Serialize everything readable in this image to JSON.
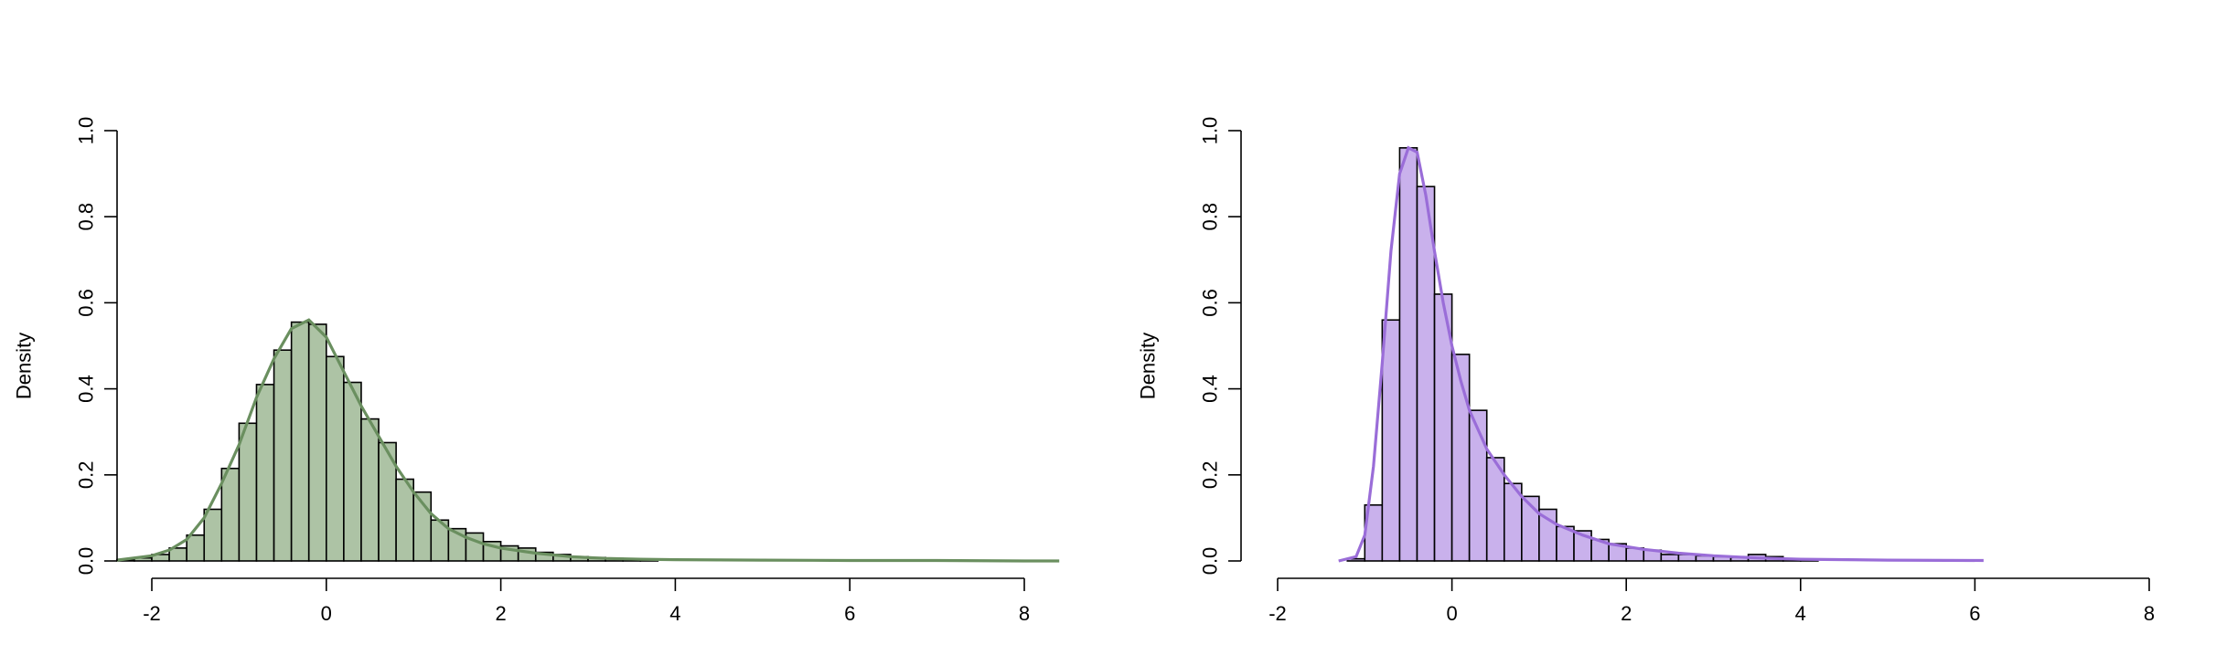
{
  "chart_data": [
    {
      "type": "histogram",
      "xlabel": "",
      "ylabel": "Density",
      "xlim": [
        -2.4,
        8.4
      ],
      "ylim": [
        0,
        1.0
      ],
      "x_ticks": [
        -2,
        0,
        2,
        4,
        6,
        8
      ],
      "y_ticks": [
        0.0,
        0.2,
        0.4,
        0.6,
        0.8,
        1.0
      ],
      "bin_width": 0.2,
      "bin_start": -2.4,
      "bars": [
        0.003,
        0.007,
        0.015,
        0.03,
        0.06,
        0.12,
        0.215,
        0.32,
        0.41,
        0.49,
        0.555,
        0.55,
        0.475,
        0.415,
        0.33,
        0.275,
        0.19,
        0.16,
        0.095,
        0.075,
        0.065,
        0.045,
        0.035,
        0.03,
        0.02,
        0.015,
        0.01,
        0.008,
        0.006,
        0.005,
        0.004
      ],
      "density_curve": {
        "x": [
          -2.4,
          -2.0,
          -1.8,
          -1.6,
          -1.4,
          -1.2,
          -1.0,
          -0.8,
          -0.6,
          -0.4,
          -0.2,
          0.0,
          0.2,
          0.4,
          0.6,
          0.8,
          1.0,
          1.2,
          1.4,
          1.6,
          1.8,
          2.0,
          2.4,
          2.8,
          3.2,
          3.6,
          4.0,
          5.0,
          6.0,
          7.0,
          8.0,
          8.4
        ],
        "y": [
          0.002,
          0.012,
          0.025,
          0.05,
          0.1,
          0.18,
          0.27,
          0.38,
          0.47,
          0.54,
          0.56,
          0.52,
          0.44,
          0.36,
          0.29,
          0.22,
          0.16,
          0.11,
          0.075,
          0.055,
          0.04,
          0.03,
          0.018,
          0.01,
          0.006,
          0.004,
          0.003,
          0.002,
          0.001,
          0.001,
          0.0,
          0.0
        ]
      },
      "bar_fill": "#adc3a5",
      "curve_color": "#6a8f5f"
    },
    {
      "type": "histogram",
      "xlabel": "",
      "ylabel": "Density",
      "xlim": [
        -2,
        8
      ],
      "ylim": [
        0,
        1.0
      ],
      "x_ticks": [
        -2,
        0,
        2,
        4,
        6,
        8
      ],
      "y_ticks": [
        0.0,
        0.2,
        0.4,
        0.6,
        0.8,
        1.0
      ],
      "bin_width": 0.2,
      "bin_start": -1.2,
      "bars": [
        0.005,
        0.13,
        0.56,
        0.96,
        0.87,
        0.62,
        0.48,
        0.35,
        0.24,
        0.18,
        0.15,
        0.12,
        0.08,
        0.07,
        0.05,
        0.04,
        0.03,
        0.025,
        0.015,
        0.015,
        0.012,
        0.01,
        0.008,
        0.015,
        0.01,
        0.005,
        0.004
      ],
      "density_curve": {
        "x": [
          -1.3,
          -1.1,
          -1.0,
          -0.9,
          -0.8,
          -0.7,
          -0.6,
          -0.5,
          -0.4,
          -0.3,
          -0.2,
          -0.1,
          0.0,
          0.1,
          0.2,
          0.4,
          0.6,
          0.8,
          1.0,
          1.2,
          1.5,
          1.8,
          2.2,
          2.6,
          3.0,
          3.5,
          4.0,
          5.0,
          6.1
        ],
        "y": [
          0.0,
          0.01,
          0.06,
          0.22,
          0.46,
          0.72,
          0.9,
          0.96,
          0.95,
          0.85,
          0.72,
          0.6,
          0.5,
          0.42,
          0.35,
          0.26,
          0.2,
          0.15,
          0.11,
          0.085,
          0.06,
          0.04,
          0.027,
          0.018,
          0.012,
          0.007,
          0.004,
          0.002,
          0.001
        ]
      },
      "bar_fill": "#c9b1ec",
      "curve_color": "#9a6dd8"
    }
  ]
}
